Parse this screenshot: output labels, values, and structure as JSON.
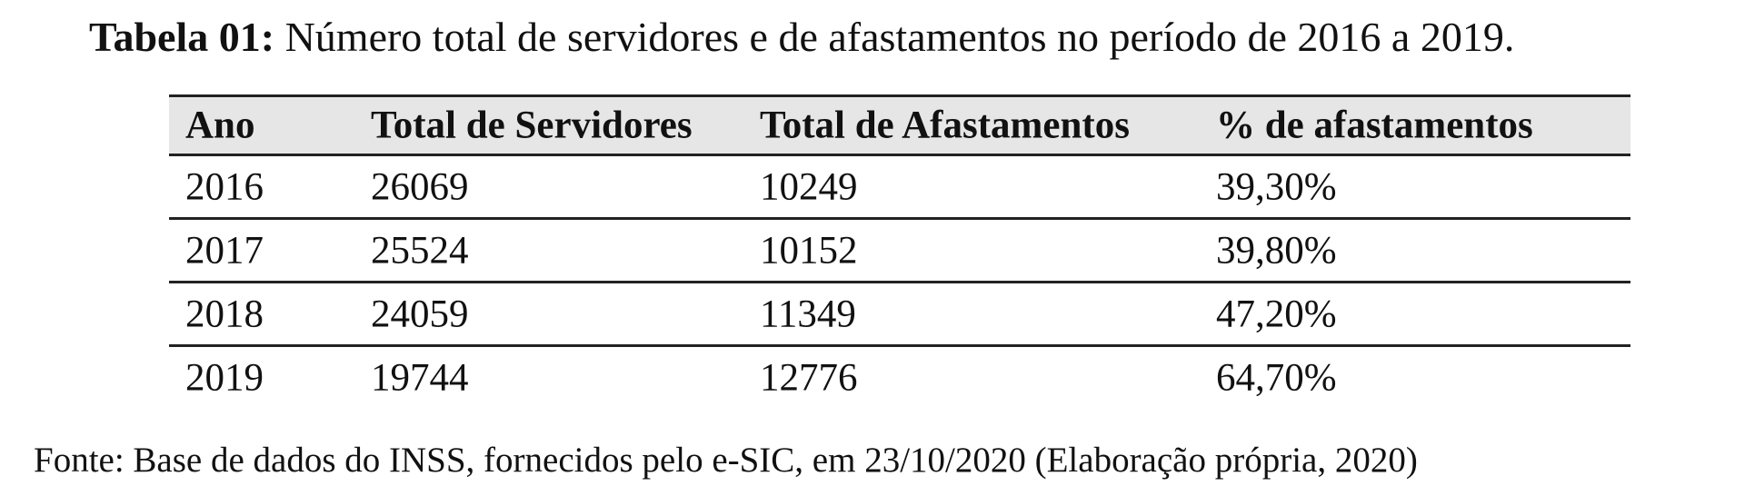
{
  "caption": {
    "label": "Tabela 01:",
    "text": "Número total de servidores e de afastamentos no período de 2016 a 2019."
  },
  "table": {
    "header": [
      "Ano",
      "Total de Servidores",
      "Total de Afastamentos",
      "% de afastamentos"
    ],
    "rows": [
      [
        "2016",
        "26069",
        "10249",
        "39,30%"
      ],
      [
        "2017",
        "25524",
        "10152",
        "39,80%"
      ],
      [
        "2018",
        "24059",
        "11349",
        "47,20%"
      ],
      [
        "2019",
        "19744",
        "12776",
        "64,70%"
      ]
    ]
  },
  "source": "Fonte: Base de dados do INSS, fornecidos pelo e-SIC, em 23/10/2020 (Elaboração própria, 2020)"
}
